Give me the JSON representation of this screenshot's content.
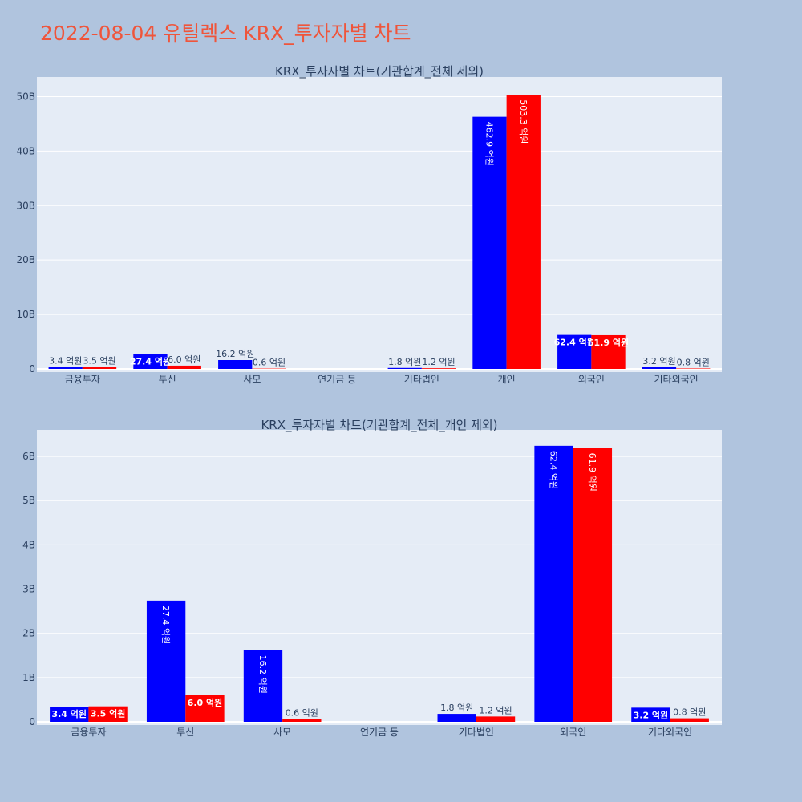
{
  "title": "2022-08-04 유틸렉스 KRX_투자자별 차트",
  "colors": {
    "title": "#ef553b",
    "page_bg": "#b0c4de",
    "plot_bg": "#e5ecf6",
    "text": "#2a3f5f",
    "sell": "#0000ff",
    "buy": "#ff0000"
  },
  "chart_data": [
    {
      "type": "bar",
      "title": "KRX_투자자별 차트(기관합계_전체 제외)",
      "categories": [
        "금융투자",
        "투신",
        "사모",
        "연기금 등",
        "기타법인",
        "개인",
        "외국인",
        "기타외국인"
      ],
      "ylim": [
        0,
        53.6
      ],
      "yticks": [
        0,
        10,
        20,
        30,
        40,
        50
      ],
      "ytick_labels": [
        "0",
        "10B",
        "20B",
        "30B",
        "40B",
        "50B"
      ],
      "grid": true,
      "series": [
        {
          "color": "#0000ff",
          "values": [
            0.34,
            2.74,
            1.62,
            0,
            0.18,
            46.29,
            6.24,
            0.32
          ],
          "labels": [
            "3.4 억원",
            "27.4 억원",
            "16.2 억원",
            "",
            "1.8 억원",
            "462.9 억원",
            "62.4 억원",
            "3.2 억원"
          ]
        },
        {
          "color": "#ff0000",
          "values": [
            0.35,
            0.6,
            0.06,
            0,
            0.12,
            50.33,
            6.19,
            0.08
          ],
          "labels": [
            "3.5 억원",
            "6.0 억원",
            "0.6 억원",
            "",
            "1.2 억원",
            "503.3 억원",
            "61.9 억원",
            "0.8 억원"
          ]
        }
      ]
    },
    {
      "type": "bar",
      "title": "KRX_투자자별 차트(기관합계_전체_개인 제외)",
      "categories": [
        "금융투자",
        "투신",
        "사모",
        "연기금 등",
        "기타법인",
        "외국인",
        "기타외국인"
      ],
      "ylim": [
        0,
        6.6
      ],
      "yticks": [
        0,
        1,
        2,
        3,
        4,
        5,
        6
      ],
      "ytick_labels": [
        "0",
        "1B",
        "2B",
        "3B",
        "4B",
        "5B",
        "6B"
      ],
      "grid": true,
      "series": [
        {
          "color": "#0000ff",
          "values": [
            0.34,
            2.74,
            1.62,
            0,
            0.18,
            6.24,
            0.32
          ],
          "labels": [
            "3.4 억원",
            "27.4 억원",
            "16.2 억원",
            "",
            "1.8 억원",
            "62.4 억원",
            "3.2 억원"
          ]
        },
        {
          "color": "#ff0000",
          "values": [
            0.35,
            0.6,
            0.06,
            0,
            0.12,
            6.19,
            0.08
          ],
          "labels": [
            "3.5 억원",
            "6.0 억원",
            "0.6 억원",
            "",
            "1.2 억원",
            "61.9 억원",
            "0.8 억원"
          ]
        }
      ]
    }
  ]
}
